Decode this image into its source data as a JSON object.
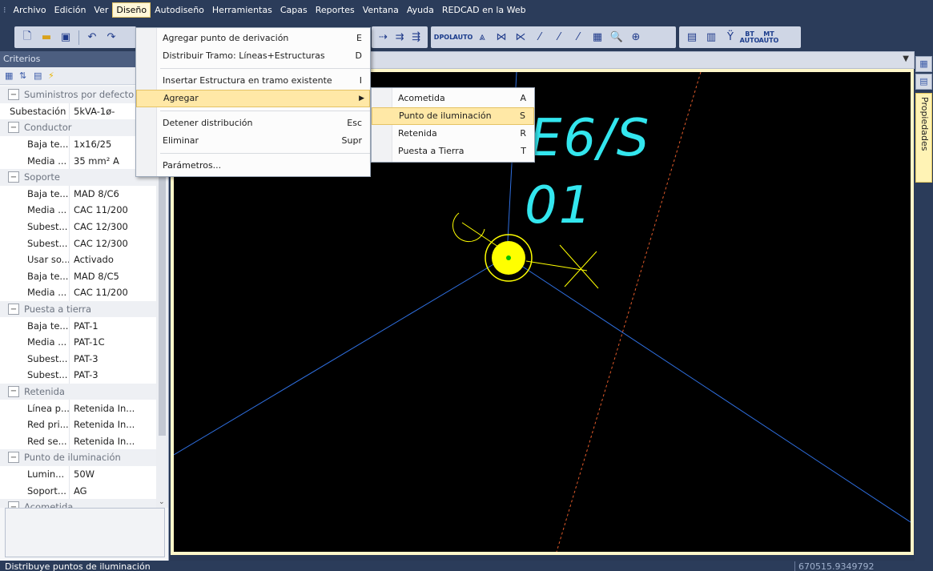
{
  "menubar": {
    "items": [
      "Archivo",
      "Edición",
      "Ver",
      "Diseño",
      "Autodiseño",
      "Herramientas",
      "Capas",
      "Reportes",
      "Ventana",
      "Ayuda",
      "REDCAD en la Web"
    ],
    "active": "Diseño"
  },
  "design_menu": {
    "items": [
      {
        "label": "Agregar punto de derivación",
        "shortcut": "E"
      },
      {
        "label": "Distribuir Tramo: Líneas+Estructuras",
        "shortcut": "D"
      },
      {
        "label": "Insertar Estructura en tramo existente",
        "shortcut": "I"
      },
      {
        "label": "Agregar",
        "shortcut": ""
      },
      {
        "label": "Detener distribución",
        "shortcut": "Esc"
      },
      {
        "label": "Eliminar",
        "shortcut": "Supr"
      },
      {
        "label": "Parámetros...",
        "shortcut": ""
      }
    ]
  },
  "agregar_submenu": {
    "items": [
      {
        "label": "Acometida",
        "shortcut": "A"
      },
      {
        "label": "Punto de iluminación",
        "shortcut": "S"
      },
      {
        "label": "Retenida",
        "shortcut": "R"
      },
      {
        "label": "Puesta a Tierra",
        "shortcut": "T"
      }
    ]
  },
  "toolbar": {
    "icons": [
      "new-icon",
      "open-icon",
      "save-icon",
      "undo-icon",
      "redo-icon"
    ],
    "labels": {
      "dpol": "DPOL",
      "auto": "AUTO",
      "bt": "BT",
      "mt": "MT"
    }
  },
  "left_panel": {
    "title": "Criterios",
    "rows": [
      {
        "type": "cat",
        "name": "Suministros por defecto",
        "value": ""
      },
      {
        "type": "top",
        "name": "Subestación",
        "value": "5kVA-1ø-"
      },
      {
        "type": "cat",
        "name": "Conductor",
        "value": ""
      },
      {
        "type": "row",
        "name": "Baja te...",
        "value": "1x16/25"
      },
      {
        "type": "row",
        "name": "Media ...",
        "value": "35 mm² A"
      },
      {
        "type": "cat",
        "name": "Soporte",
        "value": ""
      },
      {
        "type": "row",
        "name": "Baja te...",
        "value": "MAD 8/C6"
      },
      {
        "type": "row",
        "name": "Media ...",
        "value": "CAC 11/200"
      },
      {
        "type": "row",
        "name": "Subest...",
        "value": "CAC 12/300"
      },
      {
        "type": "row",
        "name": "Subest...",
        "value": "CAC 12/300"
      },
      {
        "type": "row",
        "name": "Usar so...",
        "value": "Activado"
      },
      {
        "type": "row",
        "name": "Baja te...",
        "value": "MAD 8/C5"
      },
      {
        "type": "row",
        "name": "Media ...",
        "value": "CAC 11/200"
      },
      {
        "type": "cat",
        "name": "Puesta a tierra",
        "value": ""
      },
      {
        "type": "row",
        "name": "Baja te...",
        "value": "PAT-1"
      },
      {
        "type": "row",
        "name": "Media ...",
        "value": "PAT-1C"
      },
      {
        "type": "row",
        "name": "Subest...",
        "value": "PAT-3"
      },
      {
        "type": "row",
        "name": "Subest...",
        "value": "PAT-3"
      },
      {
        "type": "cat",
        "name": "Retenida",
        "value": ""
      },
      {
        "type": "row",
        "name": "Línea p...",
        "value": "Retenida In..."
      },
      {
        "type": "row",
        "name": "Red pri...",
        "value": "Retenida In..."
      },
      {
        "type": "row",
        "name": "Red se...",
        "value": "Retenida In..."
      },
      {
        "type": "cat",
        "name": "Punto de iluminación",
        "value": ""
      },
      {
        "type": "row",
        "name": "Lumin...",
        "value": "50W"
      },
      {
        "type": "row",
        "name": "Soport...",
        "value": "AG"
      },
      {
        "type": "cat",
        "name": "Acometida",
        "value": ""
      }
    ]
  },
  "canvas": {
    "label_top": "E6/S",
    "label_bottom": "01"
  },
  "right_pane": {
    "tab_label": "Propiedades"
  },
  "status": {
    "message": "Distribuye puntos de iluminación",
    "coords": "670515.9349792"
  },
  "colors": {
    "cad_background": "#000000",
    "label_cyan": "#33e6ee",
    "line_blue": "#2f6fe0",
    "line_orange_dashed": "#e05a2a",
    "pole_yellow": "#ffff00",
    "menu_highlight": "#ffe8a6"
  }
}
